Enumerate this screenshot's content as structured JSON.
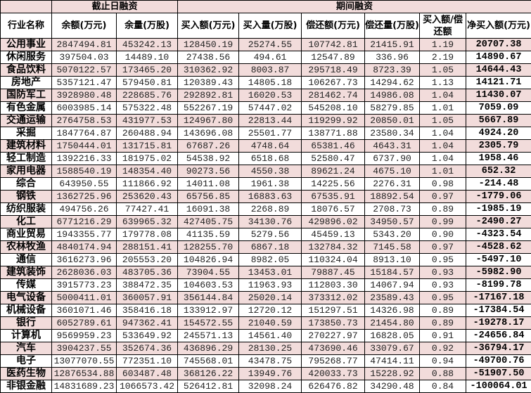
{
  "colors": {
    "row_highlight": "#f2dcdb",
    "border": "#000000"
  },
  "header": {
    "group_1": "截止日融资",
    "group_2": "期间融资",
    "columns": [
      "行业名称",
      "余额(万元)",
      "余量(万股)",
      "买入额(万元)",
      "买入量(万股)",
      "偿还额(万元)",
      "偿还量(万股)",
      "买入额/偿还额",
      "净买入额(万元)"
    ]
  },
  "rows": [
    [
      "公用事业",
      "2847494.81",
      "453242.13",
      "128450.19",
      "25274.55",
      "107742.81",
      "21415.91",
      "1.19",
      "20707.38"
    ],
    [
      "休闲服务",
      "397504.03",
      "14489.10",
      "27438.56",
      "494.61",
      "12547.89",
      "336.96",
      "2.19",
      "14890.67"
    ],
    [
      "食品饮料",
      "5070122.57",
      "173465.20",
      "310362.92",
      "8003.87",
      "295718.49",
      "8723.39",
      "1.05",
      "14644.43"
    ],
    [
      "房地产",
      "5357121.47",
      "579450.81",
      "120389.43",
      "14805.18",
      "106267.73",
      "14294.62",
      "1.13",
      "14121.71"
    ],
    [
      "国防军工",
      "3928980.48",
      "228685.76",
      "292892.81",
      "16020.53",
      "281462.74",
      "14986.08",
      "1.04",
      "11430.07"
    ],
    [
      "有色金属",
      "6003985.14",
      "575322.48",
      "552267.19",
      "57447.02",
      "545208.10",
      "58279.85",
      "1.01",
      "7059.09"
    ],
    [
      "交通运输",
      "2764758.53",
      "431977.53",
      "124967.80",
      "22813.44",
      "119299.92",
      "20850.01",
      "1.05",
      "5667.89"
    ],
    [
      "采掘",
      "1847764.87",
      "260488.94",
      "143696.08",
      "25501.77",
      "138771.88",
      "23580.34",
      "1.04",
      "4924.20"
    ],
    [
      "建筑材料",
      "1750444.01",
      "131715.81",
      "67687.26",
      "4748.64",
      "65381.46",
      "4643.31",
      "1.04",
      "2305.79"
    ],
    [
      "轻工制造",
      "1392216.33",
      "181975.02",
      "54538.92",
      "6518.68",
      "52580.47",
      "6737.90",
      "1.04",
      "1958.46"
    ],
    [
      "家用电器",
      "1588540.19",
      "148354.40",
      "90273.56",
      "4550.38",
      "89621.24",
      "4675.10",
      "1.01",
      "652.32"
    ],
    [
      "综合",
      "643950.55",
      "111866.92",
      "14011.08",
      "1961.38",
      "14225.56",
      "2276.31",
      "0.98",
      "-214.48"
    ],
    [
      "钢铁",
      "1362725.96",
      "253620.43",
      "65756.85",
      "16883.63",
      "67535.91",
      "18892.54",
      "0.97",
      "-1779.06"
    ],
    [
      "纺织服装",
      "494756.26",
      "77427.41",
      "16091.38",
      "2268.89",
      "18076.57",
      "2708.73",
      "0.89",
      "-1985.19"
    ],
    [
      "化工",
      "6771216.29",
      "639965.32",
      "427405.75",
      "34130.76",
      "429896.02",
      "34950.57",
      "0.99",
      "-2490.27"
    ],
    [
      "商业贸易",
      "1943355.77",
      "179778.08",
      "41135.59",
      "5279.56",
      "45459.13",
      "5343.20",
      "0.90",
      "-4323.54"
    ],
    [
      "农林牧渔",
      "4840174.94",
      "288151.41",
      "128255.70",
      "6867.18",
      "132784.32",
      "7145.58",
      "0.97",
      "-4528.62"
    ],
    [
      "通信",
      "3616273.96",
      "205553.20",
      "104826.94",
      "8982.05",
      "110324.04",
      "8913.10",
      "0.95",
      "-5497.10"
    ],
    [
      "建筑装饰",
      "2628036.03",
      "483705.36",
      "73904.55",
      "13453.01",
      "79887.45",
      "15184.57",
      "0.93",
      "-5982.90"
    ],
    [
      "传媒",
      "3915773.23",
      "388472.35",
      "104603.53",
      "11963.93",
      "112803.30",
      "14067.94",
      "0.93",
      "-8199.78"
    ],
    [
      "电气设备",
      "5000411.01",
      "360057.91",
      "356144.84",
      "25020.14",
      "373312.02",
      "23589.43",
      "0.95",
      "-17167.18"
    ],
    [
      "机械设备",
      "3601071.46",
      "358416.18",
      "133912.97",
      "12720.12",
      "151297.51",
      "14326.98",
      "0.89",
      "-17384.54"
    ],
    [
      "银行",
      "6052789.61",
      "947362.41",
      "154572.55",
      "21040.59",
      "173850.73",
      "21454.80",
      "0.89",
      "-19278.17"
    ],
    [
      "计算机",
      "9569959.23",
      "533649.92",
      "245571.13",
      "14561.40",
      "270227.97",
      "16828.05",
      "0.91",
      "-24656.84"
    ],
    [
      "汽车",
      "3904237.55",
      "352674.36",
      "436896.29",
      "28130.25",
      "473690.46",
      "33079.67",
      "0.92",
      "-36794.17"
    ],
    [
      "电子",
      "13077070.55",
      "772351.10",
      "745568.01",
      "43478.75",
      "795268.77",
      "47414.11",
      "0.94",
      "-49700.76"
    ],
    [
      "医药生物",
      "12876534.88",
      "603487.48",
      "368126.22",
      "13949.76",
      "420033.73",
      "15228.92",
      "0.88",
      "-51907.50"
    ],
    [
      "非银金融",
      "14831689.23",
      "1066573.42",
      "526412.81",
      "32098.24",
      "626476.82",
      "34290.48",
      "0.84",
      "-100064.01"
    ]
  ]
}
